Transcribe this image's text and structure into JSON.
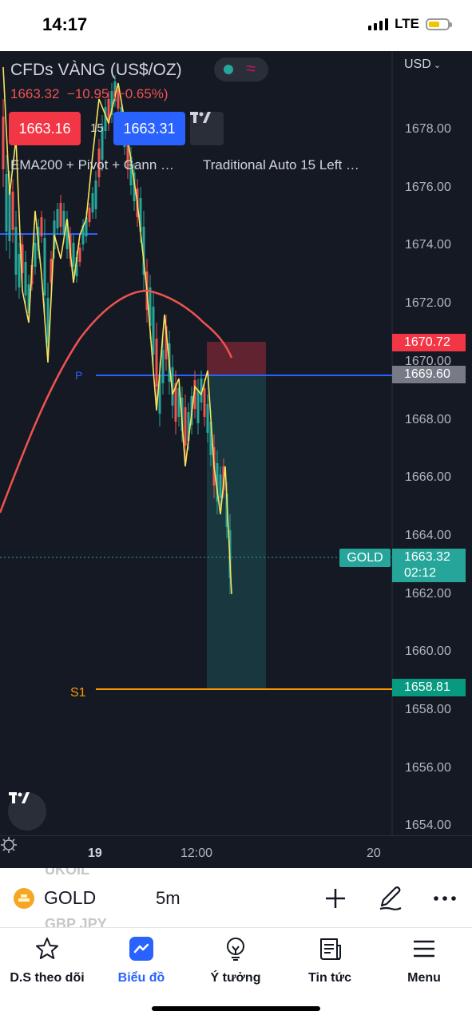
{
  "status": {
    "time": "14:17",
    "network": "LTE"
  },
  "chart": {
    "title": "CFDs VÀNG (US$/OZ)",
    "last_price": "1663.32",
    "change": "−10.95",
    "change_pct": "(−0.65%)",
    "bid": "1663.16",
    "spread": "15",
    "ask": "1663.31",
    "indicator_1": "EMA200 + Pivot + Gann …",
    "indicator_2": "Traditional Auto 15 Left …",
    "currency": "USD",
    "price_ticks": [
      "1678.00",
      "1676.00",
      "1674.00",
      "1672.00",
      "1670.00",
      "1668.00",
      "1666.00",
      "1664.00",
      "1662.00",
      "1660.00",
      "1658.00",
      "1656.00",
      "1654.00"
    ],
    "tag_ema": "1670.72",
    "tag_pivot": "1669.60",
    "tag_price": "1663.32",
    "tag_countdown": "02:12",
    "tag_s1": "1658.81",
    "symbol_tag": "GOLD",
    "pivot_p_label": "P",
    "pivot_s1_label": "S1",
    "time_labels": [
      "19",
      "12:00",
      "20"
    ],
    "colors": {
      "bg": "#151924",
      "ema": "#ef5350",
      "pivot": "#2962ff",
      "s1": "#ff9800",
      "up": "#26a69a",
      "down": "#ef5350"
    }
  },
  "symbol_bar": {
    "ghost_above": "UKOIL",
    "symbol": "GOLD",
    "interval": "5m",
    "ghost_below": "GBP JPY",
    "icons": [
      "plus-icon",
      "pen-icon",
      "more-icon"
    ]
  },
  "nav": {
    "items": [
      {
        "label": "D.S theo dõi",
        "icon": "star-icon"
      },
      {
        "label": "Biểu đồ",
        "icon": "chart-icon",
        "active": true
      },
      {
        "label": "Ý tưởng",
        "icon": "lightbulb-icon"
      },
      {
        "label": "Tin tức",
        "icon": "news-icon"
      },
      {
        "label": "Menu",
        "icon": "menu-icon"
      }
    ]
  }
}
